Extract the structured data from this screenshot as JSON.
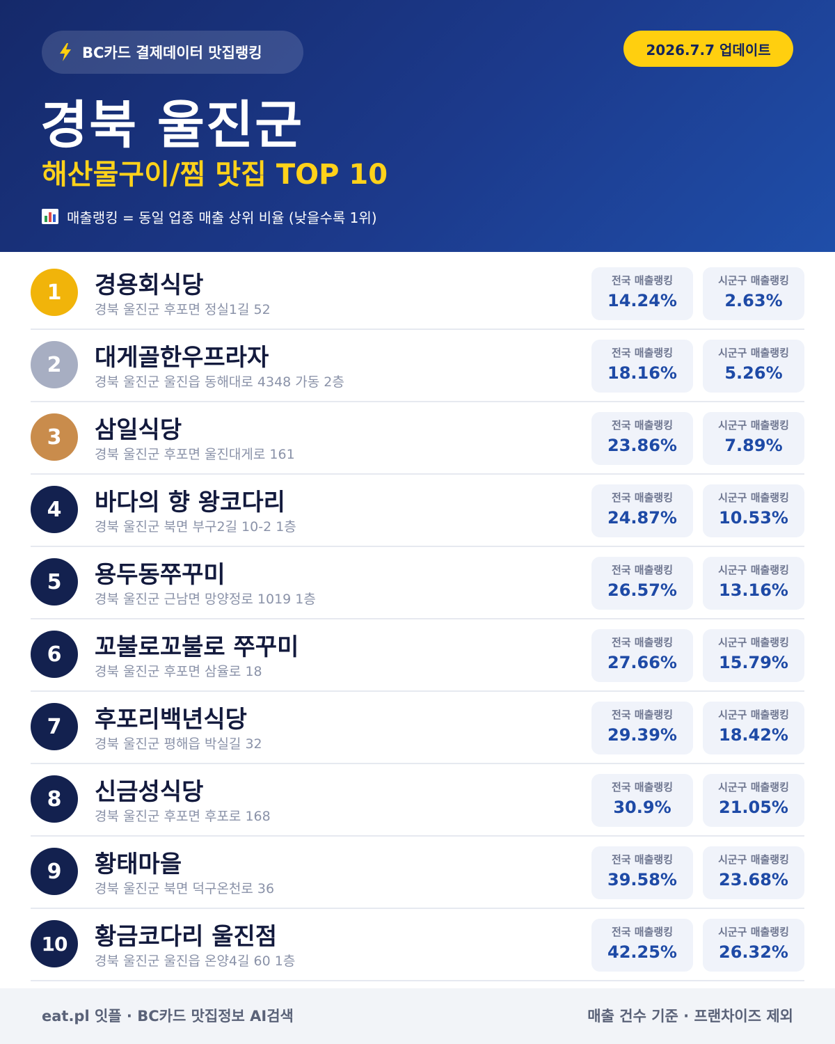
{
  "header": {
    "brand": "BC카드 결제데이터 맛집랭킹",
    "update": "2026.7.7 업데이트",
    "region": "경북 울진군",
    "category": "해산물구이/찜 맛집 TOP 10",
    "note": "매출랭킹 = 동일 업종 매출 상위 비율 (낮을수록 1위)",
    "brand_icon": "lightning-icon",
    "note_icon": "bar-chart-icon"
  },
  "colors": {
    "header_bg": "#1c3a8c",
    "accent_yellow": "#ffcf0f",
    "gold": "#f1b40a",
    "silver": "#a7aec2",
    "bronze": "#c98c4c",
    "navy": "#13214f",
    "value_blue": "#1e4aa6"
  },
  "labels": {
    "national": "전국 매출랭킹",
    "local": "시군구 매출랭킹"
  },
  "restaurants": [
    {
      "rank": "1",
      "name": "경용회식당",
      "address": "경북 울진군 후포면 정실1길 52",
      "national": "14.24%",
      "local": "2.63%"
    },
    {
      "rank": "2",
      "name": "대게골한우프라자",
      "address": "경북 울진군 울진읍 동해대로 4348 가동 2층",
      "national": "18.16%",
      "local": "5.26%"
    },
    {
      "rank": "3",
      "name": "삼일식당",
      "address": "경북 울진군 후포면 울진대게로 161",
      "national": "23.86%",
      "local": "7.89%"
    },
    {
      "rank": "4",
      "name": "바다의 향 왕코다리",
      "address": "경북 울진군 북면 부구2길 10-2 1층",
      "national": "24.87%",
      "local": "10.53%"
    },
    {
      "rank": "5",
      "name": "용두동쭈꾸미",
      "address": "경북 울진군 근남면 망양정로 1019 1층",
      "national": "26.57%",
      "local": "13.16%"
    },
    {
      "rank": "6",
      "name": "꼬불로꼬불로 쭈꾸미",
      "address": "경북 울진군 후포면 삼율로 18",
      "national": "27.66%",
      "local": "15.79%"
    },
    {
      "rank": "7",
      "name": "후포리백년식당",
      "address": "경북 울진군 평해읍 박실길 32",
      "national": "29.39%",
      "local": "18.42%"
    },
    {
      "rank": "8",
      "name": "신금성식당",
      "address": "경북 울진군 후포면 후포로 168",
      "national": "30.9%",
      "local": "21.05%"
    },
    {
      "rank": "9",
      "name": "황태마을",
      "address": "경북 울진군 북면 덕구온천로 36",
      "national": "39.58%",
      "local": "23.68%"
    },
    {
      "rank": "10",
      "name": "황금코다리 울진점",
      "address": "경북 울진군 울진읍 온양4길 60 1층",
      "national": "42.25%",
      "local": "26.32%"
    }
  ],
  "footer": {
    "left": "eat.pl 잇플 · BC카드 맛집정보 AI검색",
    "right": "매출 건수 기준 · 프랜차이즈 제외"
  }
}
